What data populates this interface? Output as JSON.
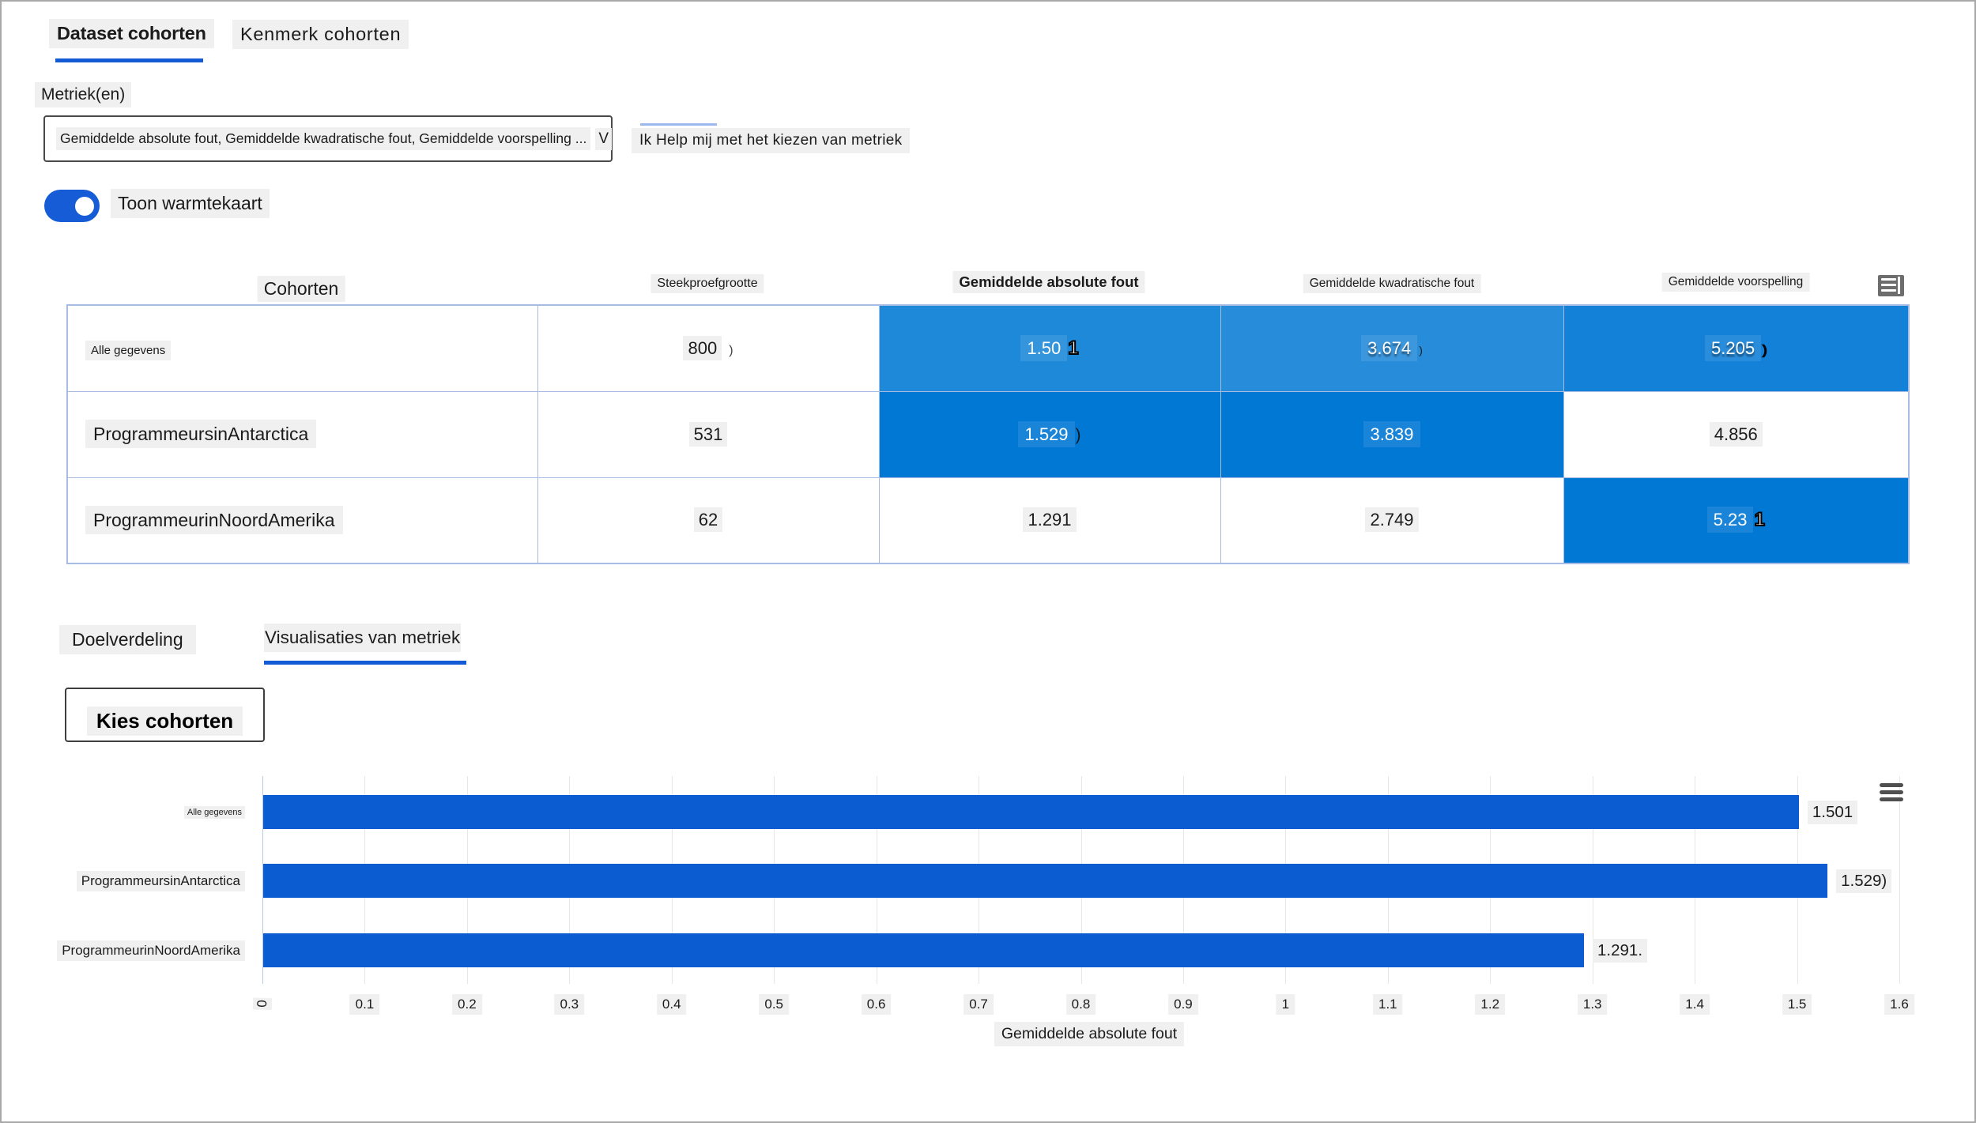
{
  "accent_color": "#125bd4",
  "heatmap_full_color": "#0078d4",
  "top_tabs": {
    "dataset_label": "Dataset cohorten",
    "feature_label": "Kenmerk cohorten"
  },
  "metrics": {
    "label": "Metriek(en)",
    "selected_value": "Gemiddelde absolute fout, Gemiddelde kwadratische fout, Gemiddelde voorspelling ...",
    "chevron": "V",
    "help_link": "Ik Help mij met het kiezen van metriek"
  },
  "heatmap_toggle": {
    "label": "Toon warmtekaart",
    "state": "on"
  },
  "table": {
    "columns": [
      "Cohorten",
      "Steekproefgrootte",
      "Gemiddelde absolute fout",
      "Gemiddelde kwadratische fout",
      "Gemiddelde voorspelling"
    ],
    "rows": [
      {
        "cohort": "Alle gegevens",
        "sample_size": "800",
        "sample_suffix": ")",
        "cells": [
          {
            "value": "1.501",
            "head": "1.50",
            "tail": "1",
            "bg": "#1e88d9",
            "fg": "#ffffff"
          },
          {
            "value": "3.674",
            "suffix": ")",
            "bg": "#278cda",
            "fg": "#ffffff"
          },
          {
            "value": "5.205",
            "suffix": ")",
            "bg": "#1281d7",
            "fg": "#ffffff"
          }
        ]
      },
      {
        "cohort": "ProgrammeursinAntarctica",
        "sample_size": "531",
        "cells": [
          {
            "value": "1.529",
            "suffix": ")",
            "bg": "#0078d4",
            "fg": "#ffffff"
          },
          {
            "value": "3.839",
            "bg": "#0078d4",
            "fg": "#ffffff"
          },
          {
            "value": "4.856",
            "bg": "#ffffff",
            "fg": "#1b1b1b"
          }
        ]
      },
      {
        "cohort": "ProgrammeurinNoordAmerika",
        "sample_size": "62",
        "cells": [
          {
            "value": "1.291",
            "bg": "#ffffff",
            "fg": "#1b1b1b"
          },
          {
            "value": "2.749",
            "bg": "#ffffff",
            "fg": "#1b1b1b"
          },
          {
            "value": "5.231",
            "head": "5.23",
            "tail": "1",
            "bg": "#0078d4",
            "fg": "#ffffff"
          }
        ]
      }
    ]
  },
  "bottom_tabs": {
    "target_label": "Doelverdeling",
    "metrics_label": "Visualisaties van metriek"
  },
  "choose_cohorts_button": "Kies cohorten",
  "chart_data": {
    "type": "bar",
    "orientation": "horizontal",
    "title": "",
    "categories": [
      "Alle gegevens",
      "ProgrammeursinAntarctica",
      "ProgrammeurinNoordAmerika"
    ],
    "values": [
      1.501,
      1.529,
      1.291
    ],
    "value_labels": [
      "1.501",
      "1.529)",
      "1.291."
    ],
    "xlabel": "Gemiddelde absolute fout",
    "xlim": [
      0,
      1.6
    ],
    "xticks": [
      0,
      0.1,
      0.2,
      0.3,
      0.4,
      0.5,
      0.6,
      0.7,
      0.8,
      0.9,
      1,
      1.1,
      1.2,
      1.3,
      1.4,
      1.5,
      1.6
    ],
    "xtick_labels": [
      "0",
      "0.1",
      "0.2",
      "0.3",
      "0.4",
      "0.5",
      "0.6",
      "0.7",
      "0.8",
      "0.9",
      "1",
      "1.1",
      "1.2",
      "1.3",
      "1.4",
      "1.5",
      "1.6"
    ],
    "bar_color": "#0b5cd1",
    "grid": true,
    "legend": "none"
  }
}
